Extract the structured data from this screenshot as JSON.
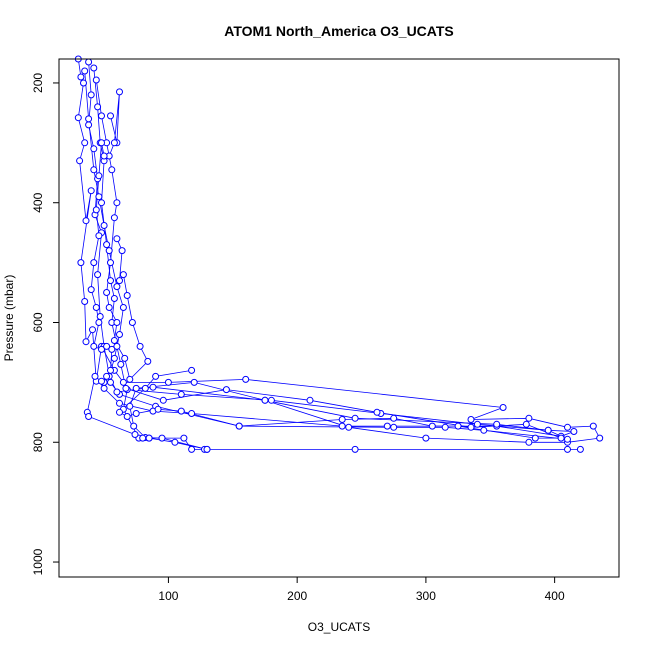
{
  "chart_data": {
    "type": "line",
    "title": "ATOM1 North_America O3_UCATS",
    "xlabel": "O3_UCATS",
    "ylabel": "Pressure (mbar)",
    "xlim": [
      15,
      450
    ],
    "ylim": [
      1025,
      160
    ],
    "y_axis_inverted": true,
    "x_ticks": [
      100,
      200,
      300,
      400
    ],
    "y_ticks": [
      200,
      400,
      600,
      800,
      1000
    ],
    "grid": false,
    "legend": "none",
    "series_color": "#0000ff",
    "marker": "open-circle",
    "series": [
      {
        "values": [
          [
            30,
            160
          ],
          [
            32,
            190
          ],
          [
            34,
            200
          ],
          [
            30,
            258
          ],
          [
            35,
            300
          ],
          [
            31,
            330
          ],
          [
            36,
            430
          ],
          [
            40,
            380
          ],
          [
            32,
            500
          ],
          [
            35,
            565
          ],
          [
            36,
            632
          ],
          [
            41,
            612
          ],
          [
            44,
            698
          ],
          [
            48,
            640
          ],
          [
            58,
            680
          ],
          [
            65,
            700
          ],
          [
            100,
            700
          ],
          [
            160,
            695
          ],
          [
            360,
            742
          ],
          [
            335,
            762
          ],
          [
            380,
            760
          ],
          [
            410,
            775
          ],
          [
            430,
            773
          ],
          [
            435,
            793
          ],
          [
            410,
            800
          ],
          [
            380,
            800
          ],
          [
            300,
            793
          ],
          [
            240,
            775
          ],
          [
            175,
            730
          ],
          [
            120,
            700
          ],
          [
            75,
            710
          ],
          [
            70,
            740
          ],
          [
            73,
            773
          ],
          [
            82,
            792
          ],
          [
            95,
            793
          ],
          [
            130,
            812
          ],
          [
            245,
            812
          ],
          [
            420,
            812
          ],
          [
            410,
            812
          ]
        ]
      },
      {
        "values": [
          [
            38,
            165
          ],
          [
            40,
            220
          ],
          [
            38,
            270
          ],
          [
            42,
            310
          ],
          [
            45,
            360
          ],
          [
            43,
            420
          ],
          [
            48,
            450
          ],
          [
            45,
            520
          ],
          [
            47,
            590
          ],
          [
            50,
            640
          ],
          [
            55,
            700
          ],
          [
            62,
            720
          ],
          [
            90,
            740
          ],
          [
            155,
            773
          ],
          [
            235,
            762
          ],
          [
            275,
            760
          ],
          [
            305,
            773
          ],
          [
            355,
            773
          ],
          [
            405,
            790
          ],
          [
            415,
            782
          ],
          [
            395,
            780
          ],
          [
            340,
            770
          ],
          [
            265,
            752
          ],
          [
            180,
            730
          ],
          [
            110,
            720
          ],
          [
            68,
            712
          ],
          [
            65,
            745
          ],
          [
            77,
            793
          ],
          [
            85,
            793
          ],
          [
            112,
            793
          ],
          [
            118,
            812
          ],
          [
            128,
            812
          ]
        ]
      },
      {
        "values": [
          [
            42,
            175
          ],
          [
            45,
            240
          ],
          [
            47,
            300
          ],
          [
            50,
            330
          ],
          [
            48,
            400
          ],
          [
            52,
            470
          ],
          [
            55,
            530
          ],
          [
            58,
            560
          ],
          [
            56,
            600
          ],
          [
            60,
            640
          ],
          [
            63,
            670
          ],
          [
            67,
            710
          ],
          [
            96,
            730
          ],
          [
            145,
            712
          ],
          [
            210,
            730
          ],
          [
            262,
            750
          ],
          [
            335,
            775
          ],
          [
            378,
            770
          ],
          [
            405,
            793
          ],
          [
            385,
            793
          ],
          [
            325,
            773
          ],
          [
            270,
            773
          ],
          [
            235,
            773
          ],
          [
            118,
            752
          ],
          [
            88,
            748
          ],
          [
            62,
            735
          ],
          [
            50,
            710
          ],
          [
            43,
            690
          ],
          [
            37,
            750
          ],
          [
            38,
            757
          ],
          [
            74,
            787
          ],
          [
            80,
            793
          ],
          [
            85,
            793
          ],
          [
            105,
            800
          ],
          [
            130,
            812
          ]
        ]
      },
      {
        "values": [
          [
            35,
            180
          ],
          [
            38,
            260
          ],
          [
            42,
            345
          ],
          [
            46,
            390
          ],
          [
            50,
            438
          ],
          [
            54,
            480
          ],
          [
            60,
            540
          ],
          [
            65,
            575
          ],
          [
            62,
            620
          ],
          [
            58,
            660
          ],
          [
            54,
            690
          ],
          [
            60,
            716
          ],
          [
            88,
            708
          ],
          [
            175,
            730
          ],
          [
            245,
            760
          ],
          [
            355,
            770
          ],
          [
            395,
            780
          ],
          [
            410,
            795
          ],
          [
            345,
            780
          ],
          [
            315,
            775
          ],
          [
            275,
            775
          ],
          [
            155,
            773
          ],
          [
            110,
            748
          ],
          [
            92,
            745
          ],
          [
            75,
            752
          ],
          [
            68,
            757
          ],
          [
            62,
            750
          ],
          [
            82,
            710
          ],
          [
            90,
            690
          ],
          [
            118,
            680
          ]
        ]
      },
      {
        "values": [
          [
            44,
            195
          ],
          [
            48,
            255
          ],
          [
            52,
            300
          ],
          [
            56,
            345
          ],
          [
            60,
            400
          ],
          [
            58,
            425
          ],
          [
            55,
            500
          ],
          [
            52,
            550
          ],
          [
            54,
            575
          ],
          [
            60,
            600
          ],
          [
            58,
            630
          ],
          [
            66,
            660
          ],
          [
            70,
            695
          ],
          [
            84,
            665
          ],
          [
            78,
            640
          ],
          [
            72,
            600
          ],
          [
            68,
            555
          ],
          [
            65,
            520
          ],
          [
            62,
            530
          ],
          [
            64,
            480
          ],
          [
            60,
            460
          ]
        ]
      },
      {
        "values": [
          [
            55,
            255
          ],
          [
            60,
            300
          ],
          [
            62,
            215
          ],
          [
            58,
            300
          ],
          [
            54,
            322
          ],
          [
            50,
            322
          ],
          [
            48,
            300
          ],
          [
            46,
            355
          ],
          [
            44,
            412
          ],
          [
            46,
            455
          ],
          [
            42,
            500
          ],
          [
            40,
            545
          ],
          [
            44,
            575
          ],
          [
            46,
            600
          ],
          [
            42,
            640
          ],
          [
            48,
            645
          ],
          [
            52,
            640
          ],
          [
            56,
            645
          ],
          [
            55,
            680
          ],
          [
            52,
            690
          ],
          [
            50,
            700
          ],
          [
            48,
            698
          ]
        ]
      }
    ]
  }
}
